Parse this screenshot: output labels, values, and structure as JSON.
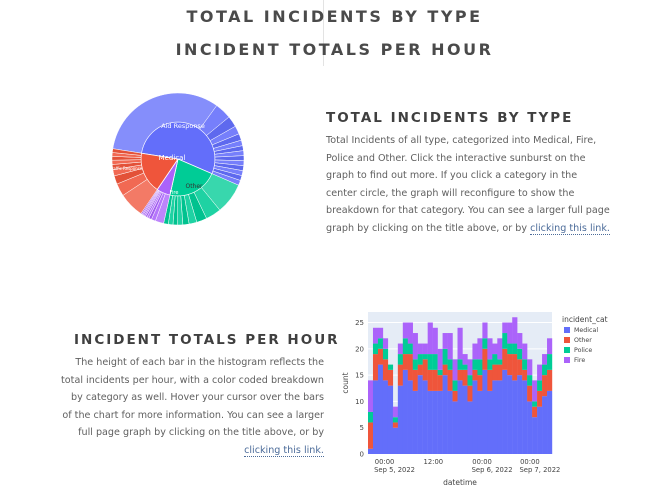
{
  "header": {
    "link1": "TOTAL INCIDENTS BY TYPE",
    "link2": "INCIDENT TOTALS PER HOUR"
  },
  "section1": {
    "title": "TOTAL INCIDENTS BY TYPE",
    "body": "Total Incidents of all type, categorized into Medical, Fire, Police and Other. Click the interactive sunburst on the graph to find out more. If you click a category in the center circle, the graph will reconfigure to show the breakdown for that category. You can see a larger full page graph by clicking on the title above, or by ",
    "link": "clicking this link."
  },
  "section2": {
    "title": "INCIDENT TOTALS PER HOUR",
    "body": "The height of each bar in the histogram reflects the total incidents per hour, with a color coded breakdown by category as well. Hover your cursor over the bars of the chart for more information. You can see a larger full page graph by clicking on the title above, or by ",
    "link": "clicking this link."
  },
  "colors": {
    "Medical": "#636efa",
    "Other": "#ef553b",
    "Police": "#00cc96",
    "Fire": "#ab63fa"
  },
  "chart_data": [
    {
      "type": "sunburst",
      "center": [
        "Medical",
        "Other",
        "Fire",
        "Police"
      ],
      "inner": [
        {
          "name": "Medical",
          "share": 0.54
        },
        {
          "name": "Police",
          "share": 0.22
        },
        {
          "name": "Fire",
          "share": 0.06
        },
        {
          "name": "Other",
          "share": 0.18
        }
      ],
      "labels": {
        "inner": [
          "Medical",
          "Other",
          "Fire"
        ],
        "outer": [
          "Aid Response",
          "Traffic Response"
        ]
      }
    },
    {
      "type": "bar",
      "stacked": true,
      "xlabel": "datetime",
      "ylabel": "count",
      "ylim": [
        0,
        27
      ],
      "yticks": [
        0,
        5,
        10,
        15,
        20,
        25
      ],
      "xticks": [
        {
          "line1": "00:00",
          "line2": "Sep 5, 2022"
        },
        {
          "line1": "12:00",
          "line2": ""
        },
        {
          "line1": "00:00",
          "line2": "Sep 6, 2022"
        },
        {
          "line1": "12:00",
          "line2": ""
        },
        {
          "line1": "00:00",
          "line2": "Sep 7, 2022"
        }
      ],
      "legend_title": "incident_cat",
      "legend": [
        "Medical",
        "Other",
        "Police",
        "Fire"
      ],
      "legend_position": "right",
      "series": [
        {
          "name": "Medical",
          "values": [
            1,
            14,
            17,
            14,
            13,
            5,
            13,
            16,
            14,
            12,
            15,
            14,
            12,
            12,
            12,
            15,
            12,
            10,
            14,
            13,
            10,
            14,
            12,
            16,
            12,
            14,
            14,
            16,
            15,
            14,
            15,
            14,
            10,
            7,
            9,
            11,
            12
          ]
        },
        {
          "name": "Other",
          "values": [
            5,
            5,
            3,
            4,
            3,
            1,
            4,
            3,
            5,
            4,
            2,
            4,
            4,
            4,
            3,
            2,
            4,
            2,
            2,
            3,
            3,
            2,
            3,
            4,
            4,
            3,
            3,
            4,
            4,
            5,
            3,
            2,
            3,
            2,
            3,
            4,
            4
          ]
        },
        {
          "name": "Police",
          "values": [
            2,
            2,
            2,
            2,
            1,
            1,
            2,
            3,
            2,
            2,
            2,
            1,
            3,
            3,
            1,
            3,
            2,
            2,
            2,
            1,
            2,
            2,
            3,
            2,
            2,
            2,
            1,
            3,
            2,
            2,
            2,
            2,
            2,
            1,
            2,
            2,
            3
          ]
        },
        {
          "name": "Fire",
          "values": [
            6,
            3,
            2,
            2,
            0,
            2,
            2,
            3,
            4,
            5,
            2,
            2,
            6,
            5,
            4,
            3,
            5,
            4,
            6,
            2,
            3,
            3,
            4,
            3,
            4,
            2,
            4,
            2,
            4,
            5,
            3,
            3,
            3,
            4,
            3,
            2,
            3
          ]
        }
      ]
    }
  ]
}
